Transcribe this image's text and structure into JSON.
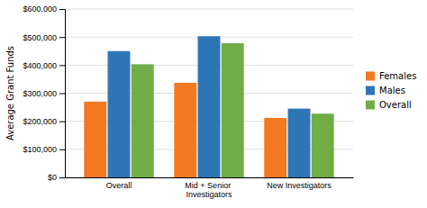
{
  "chart_data": {
    "type": "bar",
    "categories": [
      "Overall",
      "Mid + Senior Investigators",
      "New Investigators"
    ],
    "series": [
      {
        "name": "Females",
        "color": "#F47920",
        "values": [
          270000,
          337000,
          212000
        ]
      },
      {
        "name": "Males",
        "color": "#2E75B6",
        "values": [
          450000,
          503000,
          245000
        ]
      },
      {
        "name": "Overall",
        "color": "#70AD47",
        "values": [
          403000,
          478000,
          227000
        ]
      }
    ],
    "ylabel": "Average Grant Funds",
    "ylim": [
      0,
      600000
    ],
    "yticks": [
      {
        "value": 0,
        "label": "$0"
      },
      {
        "value": 100000,
        "label": "$100,000"
      },
      {
        "value": 200000,
        "label": "$200,000"
      },
      {
        "value": 300000,
        "label": "$300,000"
      },
      {
        "value": 400000,
        "label": "$400,000"
      },
      {
        "value": 500000,
        "label": "$500,000"
      },
      {
        "value": 600000,
        "label": "$600,000"
      }
    ],
    "grid": true,
    "legend": "right"
  }
}
